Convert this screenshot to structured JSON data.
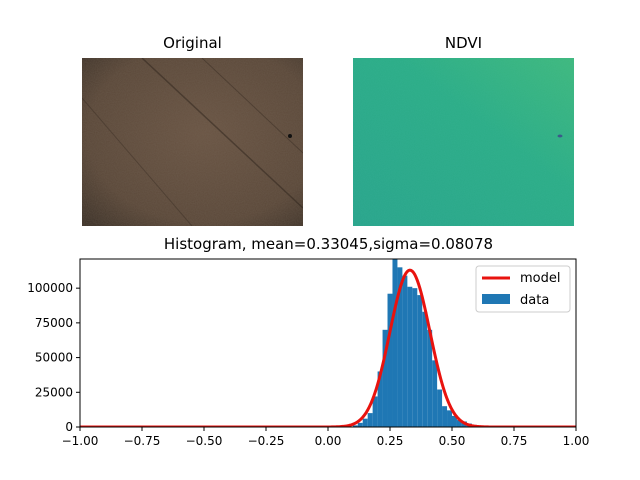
{
  "panels": {
    "original_title": "Original",
    "ndvi_title": "NDVI"
  },
  "chart_data": {
    "type": "bar",
    "title": "Histogram, mean=0.33045,sigma=0.08078",
    "xlabel": "",
    "ylabel": "",
    "xlim": [
      -1.0,
      1.0
    ],
    "ylim": [
      0,
      121000
    ],
    "x_ticks": [
      -1.0,
      -0.75,
      -0.5,
      -0.25,
      0.0,
      0.25,
      0.5,
      0.75,
      1.0
    ],
    "x_tick_labels": [
      "−1.00",
      "−0.75",
      "−0.50",
      "−0.25",
      "0.00",
      "0.25",
      "0.50",
      "0.75",
      "1.00"
    ],
    "y_ticks": [
      0,
      25000,
      50000,
      75000,
      100000
    ],
    "y_tick_labels": [
      "0",
      "25000",
      "50000",
      "75000",
      "100000"
    ],
    "legend_position": "top-right",
    "series": [
      {
        "name": "data",
        "kind": "histogram",
        "color": "#1f77b4",
        "bin_width": 0.02,
        "bin_left_edges": [
          0.08,
          0.1,
          0.12,
          0.14,
          0.16,
          0.18,
          0.2,
          0.22,
          0.24,
          0.26,
          0.28,
          0.3,
          0.32,
          0.34,
          0.36,
          0.38,
          0.4,
          0.42,
          0.44,
          0.46,
          0.48,
          0.5,
          0.52,
          0.54,
          0.56,
          0.58,
          0.6,
          0.62
        ],
        "values": [
          300,
          1200,
          3000,
          6000,
          10000,
          22000,
          40000,
          70000,
          96000,
          121000,
          115000,
          109000,
          101000,
          100000,
          95000,
          83000,
          70000,
          48000,
          27000,
          15000,
          12000,
          8000,
          5000,
          4000,
          2500,
          1500,
          700,
          200
        ]
      },
      {
        "name": "model",
        "kind": "gaussian",
        "color": "#e8130f",
        "mean": 0.33045,
        "sigma": 0.08078,
        "peak": 113000
      }
    ]
  }
}
